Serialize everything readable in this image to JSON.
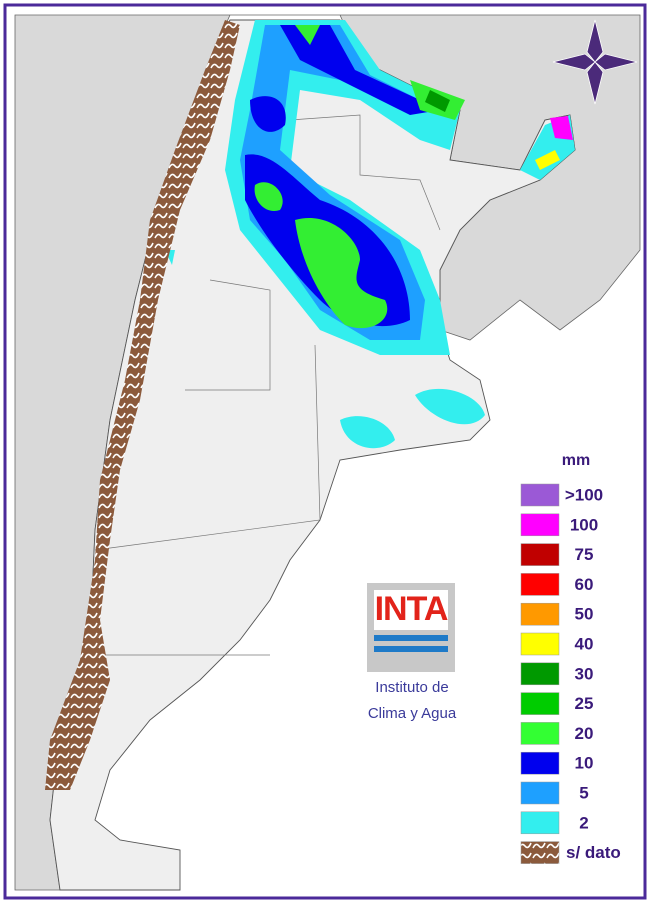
{
  "legend": {
    "title": "mm",
    "items": [
      {
        "label": ">100",
        "color": "#9b59d6"
      },
      {
        "label": "100",
        "color": "#ff00ff"
      },
      {
        "label": "75",
        "color": "#c00000"
      },
      {
        "label": "60",
        "color": "#ff0000"
      },
      {
        "label": "50",
        "color": "#ff9900"
      },
      {
        "label": "40",
        "color": "#ffff00"
      },
      {
        "label": "30",
        "color": "#009900"
      },
      {
        "label": "25",
        "color": "#00cc00"
      },
      {
        "label": "20",
        "color": "#33ff33"
      },
      {
        "label": "10",
        "color": "#0000ee"
      },
      {
        "label": "5",
        "color": "#1ea0ff"
      },
      {
        "label": "2",
        "color": "#33eeee"
      },
      {
        "label": "s/ dato",
        "color": "#8b5a3c"
      }
    ]
  },
  "logo": {
    "text": "INTA",
    "caption": [
      "Instituto de",
      "Clima y Agua"
    ]
  }
}
